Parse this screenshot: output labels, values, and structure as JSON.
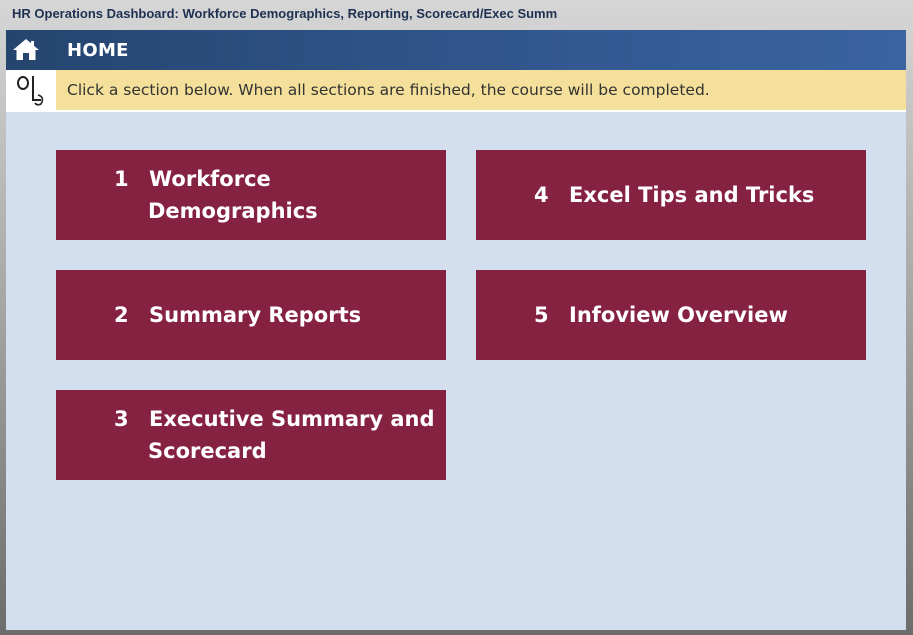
{
  "window": {
    "title": "HR Operations Dashboard: Workforce Demographics, Reporting, Scorecard/Exec Summ"
  },
  "header": {
    "title": "HOME",
    "icon": "home-icon"
  },
  "instruction": {
    "logo_icon": "ol-logo-icon",
    "text": "Click a section below. When all sections are finished, the course will be completed."
  },
  "sections": [
    {
      "number": "1",
      "line1": "Workforce",
      "line2": "Demographics"
    },
    {
      "number": "2",
      "line1": "Summary Reports",
      "line2": ""
    },
    {
      "number": "3",
      "line1": "Executive Summary and",
      "line2": "Scorecard"
    },
    {
      "number": "4",
      "line1": "Excel Tips and Tricks",
      "line2": ""
    },
    {
      "number": "5",
      "line1": "Infoview Overview",
      "line2": ""
    }
  ],
  "colors": {
    "header_start": "#25456f",
    "header_end": "#3a64a0",
    "tile": "#862241",
    "instruction_bg": "#f4e09a",
    "content_bg": "#d3dfee"
  }
}
